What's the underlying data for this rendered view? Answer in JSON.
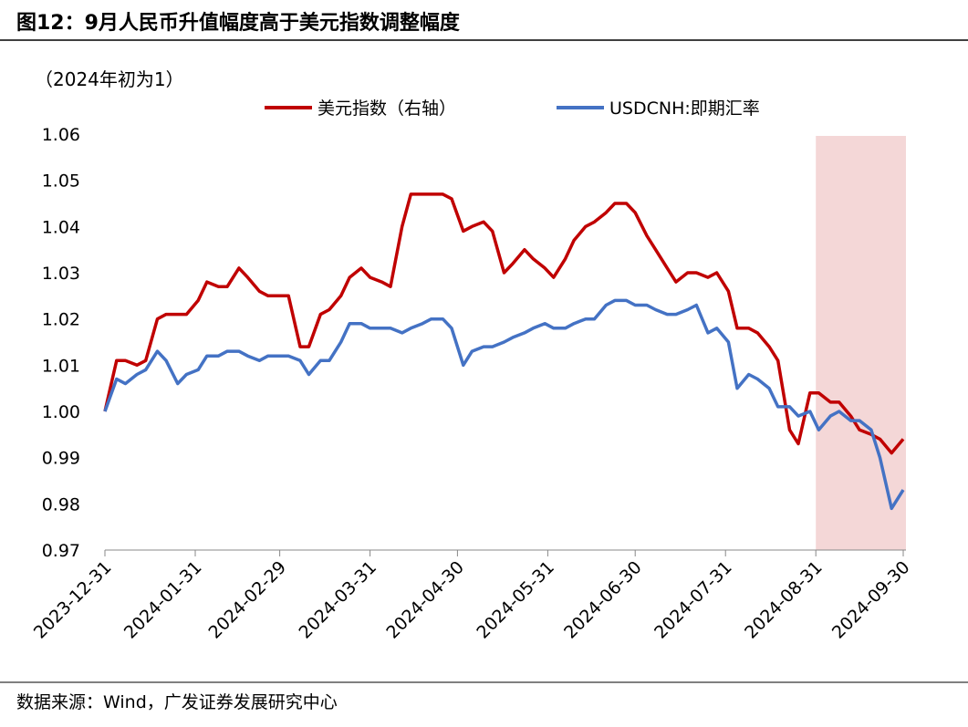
{
  "chart_data": {
    "type": "line",
    "title": "图12：9月人民币升值幅度高于美元指数调整幅度",
    "unit_label": "（2024年初为1）",
    "source": "数据来源：Wind，广发证券发展研究中心",
    "x": [
      "2023-12-31",
      "2024-01-04",
      "2024-01-07",
      "2024-01-11",
      "2024-01-14",
      "2024-01-18",
      "2024-01-21",
      "2024-01-25",
      "2024-01-28",
      "2024-02-01",
      "2024-02-04",
      "2024-02-08",
      "2024-02-11",
      "2024-02-15",
      "2024-02-18",
      "2024-02-22",
      "2024-02-25",
      "2024-02-29",
      "2024-03-03",
      "2024-03-07",
      "2024-03-10",
      "2024-03-14",
      "2024-03-17",
      "2024-03-21",
      "2024-03-24",
      "2024-03-28",
      "2024-03-31",
      "2024-04-04",
      "2024-04-07",
      "2024-04-11",
      "2024-04-14",
      "2024-04-18",
      "2024-04-21",
      "2024-04-25",
      "2024-04-28",
      "2024-05-02",
      "2024-05-05",
      "2024-05-09",
      "2024-05-12",
      "2024-05-16",
      "2024-05-19",
      "2024-05-23",
      "2024-05-26",
      "2024-05-30",
      "2024-06-02",
      "2024-06-06",
      "2024-06-09",
      "2024-06-13",
      "2024-06-16",
      "2024-06-20",
      "2024-06-23",
      "2024-06-27",
      "2024-06-30",
      "2024-07-04",
      "2024-07-07",
      "2024-07-11",
      "2024-07-14",
      "2024-07-18",
      "2024-07-21",
      "2024-07-25",
      "2024-07-28",
      "2024-08-01",
      "2024-08-04",
      "2024-08-08",
      "2024-08-11",
      "2024-08-15",
      "2024-08-18",
      "2024-08-22",
      "2024-08-25",
      "2024-08-29",
      "2024-09-01",
      "2024-09-05",
      "2024-09-08",
      "2024-09-12",
      "2024-09-15",
      "2024-09-19",
      "2024-09-22",
      "2024-09-26",
      "2024-09-30"
    ],
    "series": [
      {
        "name": "美元指数（右轴）",
        "color": "#c00000",
        "values": [
          1.0,
          1.011,
          1.011,
          1.01,
          1.011,
          1.02,
          1.021,
          1.021,
          1.021,
          1.024,
          1.028,
          1.027,
          1.027,
          1.031,
          1.029,
          1.026,
          1.025,
          1.025,
          1.025,
          1.014,
          1.014,
          1.021,
          1.022,
          1.025,
          1.029,
          1.031,
          1.029,
          1.028,
          1.027,
          1.04,
          1.047,
          1.047,
          1.047,
          1.047,
          1.046,
          1.039,
          1.04,
          1.041,
          1.039,
          1.03,
          1.032,
          1.035,
          1.033,
          1.031,
          1.029,
          1.033,
          1.037,
          1.04,
          1.041,
          1.043,
          1.045,
          1.045,
          1.043,
          1.038,
          1.035,
          1.031,
          1.028,
          1.03,
          1.03,
          1.029,
          1.03,
          1.026,
          1.018,
          1.018,
          1.017,
          1.014,
          1.011,
          0.996,
          0.993,
          1.004,
          1.004,
          1.002,
          1.002,
          0.999,
          0.996,
          0.995,
          0.994,
          0.991,
          0.994
        ]
      },
      {
        "name": "USDCNH:即期汇率",
        "color": "#4472c4",
        "values": [
          1.0,
          1.007,
          1.006,
          1.008,
          1.009,
          1.013,
          1.011,
          1.006,
          1.008,
          1.009,
          1.012,
          1.012,
          1.013,
          1.013,
          1.012,
          1.011,
          1.012,
          1.012,
          1.012,
          1.011,
          1.008,
          1.011,
          1.011,
          1.015,
          1.019,
          1.019,
          1.018,
          1.018,
          1.018,
          1.017,
          1.018,
          1.019,
          1.02,
          1.02,
          1.018,
          1.01,
          1.013,
          1.014,
          1.014,
          1.015,
          1.016,
          1.017,
          1.018,
          1.019,
          1.018,
          1.018,
          1.019,
          1.02,
          1.02,
          1.023,
          1.024,
          1.024,
          1.023,
          1.023,
          1.022,
          1.021,
          1.021,
          1.022,
          1.023,
          1.017,
          1.018,
          1.015,
          1.005,
          1.008,
          1.007,
          1.005,
          1.001,
          1.001,
          0.999,
          1.0,
          0.996,
          0.999,
          1.0,
          0.998,
          0.998,
          0.996,
          0.99,
          0.979,
          0.983
        ]
      }
    ],
    "xlim": [
      "2023-12-31",
      "2024-09-30"
    ],
    "xticks": [
      "2023-12-31",
      "2024-01-31",
      "2024-02-29",
      "2024-03-31",
      "2024-04-30",
      "2024-05-31",
      "2024-06-30",
      "2024-07-31",
      "2024-08-31",
      "2024-09-30"
    ],
    "ylim": [
      0.97,
      1.06
    ],
    "yticks": [
      0.97,
      0.98,
      0.99,
      {
        "value": 1,
        "label": "1.00"
      },
      1.01,
      1.02,
      1.03,
      1.04,
      1.05,
      1.06
    ],
    "highlight": [
      "2024-08-31",
      "2024-09-30"
    ],
    "highlight_color": "#f4d7d7"
  }
}
